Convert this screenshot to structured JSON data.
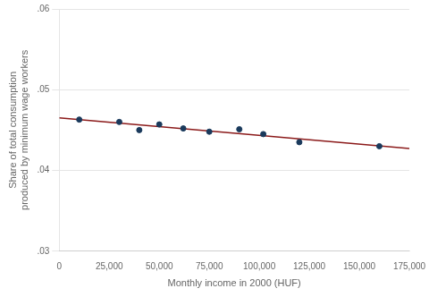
{
  "chart_data": {
    "type": "scatter",
    "xlabel": "Monthly income in 2000 (HUF)",
    "ylabel": "Share of total consumption\nproduced by minimum wage workers",
    "x": [
      10000,
      30000,
      40000,
      50000,
      62000,
      75000,
      90000,
      102000,
      120000,
      160000
    ],
    "values": [
      0.0463,
      0.046,
      0.045,
      0.0457,
      0.0452,
      0.0448,
      0.0451,
      0.0445,
      0.0435,
      0.043
    ],
    "color": "#1a3a5c",
    "fit_line": {
      "x": [
        0,
        175000
      ],
      "values": [
        0.046512,
        0.042719
      ],
      "color": "#8b1a1a"
    },
    "xlim": [
      0,
      175000
    ],
    "xticks": [
      0,
      {
        "value": 25000,
        "label": "25,000"
      },
      {
        "value": 50000,
        "label": "50,000"
      },
      {
        "value": 75000,
        "label": "75,000"
      },
      {
        "value": 100000,
        "label": "100,000"
      },
      {
        "value": 125000,
        "label": "125,000"
      },
      {
        "value": 150000,
        "label": "150,000"
      },
      {
        "value": 175000,
        "label": "175,000"
      }
    ],
    "ylim": [
      0.03,
      0.06
    ],
    "yticks": [
      {
        "value": 0.03,
        "label": ".03"
      },
      {
        "value": 0.04,
        "label": ".04"
      },
      {
        "value": 0.05,
        "label": ".05"
      },
      {
        "value": 0.06,
        "label": ".06"
      }
    ],
    "grid": "y"
  }
}
